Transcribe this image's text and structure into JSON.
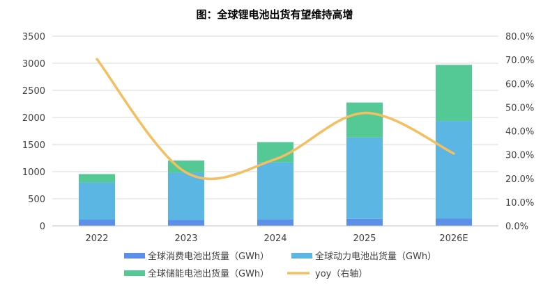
{
  "chart_data": {
    "type": "bar",
    "stacked": true,
    "title": "图：全球锂电池出货有望维持高增",
    "categories": [
      "2022",
      "2023",
      "2024",
      "2025",
      "2026E"
    ],
    "series": [
      {
        "name": "全球消费电池出货量（GWh）",
        "color": "#5B8FE8",
        "values": [
          115,
          110,
          120,
          130,
          135
        ]
      },
      {
        "name": "全球动力电池出货量（GWh）",
        "color": "#5BB6E4",
        "values": [
          685,
          870,
          1050,
          1500,
          1800
        ]
      },
      {
        "name": "全球储能电池出货量（GWh）",
        "color": "#55C995",
        "values": [
          155,
          225,
          375,
          645,
          1035
        ]
      }
    ],
    "line": {
      "name": "yoy（右轴）",
      "color": "#F5BE5E",
      "values": [
        0.703,
        0.225,
        0.281,
        0.476,
        0.305
      ]
    },
    "ylim": [
      0,
      3500
    ],
    "yticks": [
      0,
      500,
      1000,
      1500,
      2000,
      2500,
      3000,
      3500
    ],
    "y2lim": [
      0,
      0.8
    ],
    "y2ticks": [
      "0.0%",
      "10.0%",
      "20.0%",
      "30.0%",
      "40.0%",
      "50.0%",
      "60.0%",
      "70.0%",
      "80.0%"
    ],
    "legend_position": "bottom"
  }
}
